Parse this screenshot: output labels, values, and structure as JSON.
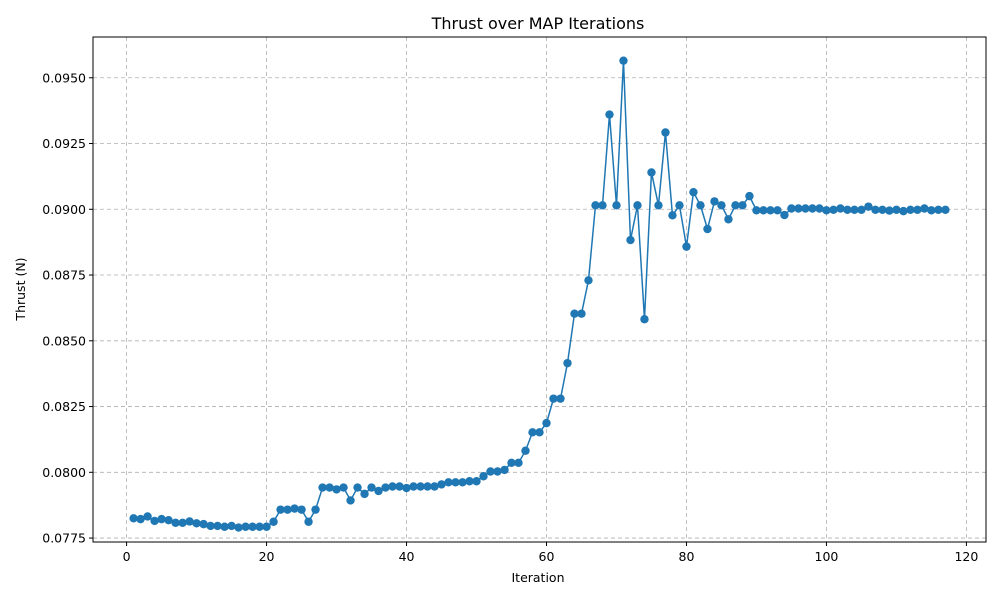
{
  "chart_data": {
    "type": "line",
    "title": "Thrust over MAP Iterations",
    "xlabel": "Iteration",
    "ylabel": "Thrust (N)",
    "xlim": [
      -4.8,
      122.8
    ],
    "ylim": [
      0.07735,
      0.09655
    ],
    "xticks": [
      0,
      20,
      40,
      60,
      80,
      100,
      120
    ],
    "yticks": [
      0.0775,
      0.08,
      0.0825,
      0.085,
      0.0875,
      0.09,
      0.0925,
      0.095
    ],
    "ytick_labels": [
      "0.0775",
      "0.0800",
      "0.0825",
      "0.0850",
      "0.0875",
      "0.0900",
      "0.0925",
      "0.0950"
    ],
    "grid": true,
    "series_color": "#1f77b4",
    "series": [
      {
        "x": [
          1,
          2,
          3,
          4,
          5,
          6,
          7,
          8,
          9,
          10,
          11,
          12,
          13,
          14,
          15,
          16,
          17,
          18,
          19,
          20,
          21,
          22,
          23,
          24,
          25,
          26,
          27,
          28,
          29,
          30,
          31,
          32,
          33,
          34,
          35,
          36,
          37,
          38,
          39,
          40,
          41,
          42,
          43,
          44,
          45,
          46,
          47,
          48,
          49,
          50,
          51,
          52,
          53,
          54,
          55,
          56,
          57,
          58,
          59,
          60,
          61,
          62,
          63,
          64,
          65,
          66,
          67,
          68,
          69,
          70,
          71,
          72,
          73,
          74,
          75,
          76,
          77,
          78,
          79,
          80,
          81,
          82,
          83,
          84,
          85,
          86,
          87,
          88,
          89,
          90,
          91,
          92,
          93,
          94,
          95,
          96,
          97,
          98,
          99,
          100,
          101,
          102,
          103,
          104,
          105,
          106,
          107,
          108,
          109,
          110,
          111,
          112,
          113,
          114,
          115,
          116,
          117
        ],
        "values": [
          0.07825,
          0.07822,
          0.07832,
          0.07815,
          0.07822,
          0.07818,
          0.07808,
          0.07808,
          0.07813,
          0.07806,
          0.07803,
          0.07796,
          0.07796,
          0.07793,
          0.07796,
          0.0779,
          0.07793,
          0.07793,
          0.07793,
          0.07793,
          0.07812,
          0.07858,
          0.07858,
          0.07862,
          0.07858,
          0.07812,
          0.07858,
          0.07942,
          0.07942,
          0.07935,
          0.07942,
          0.07893,
          0.07942,
          0.07918,
          0.07942,
          0.07929,
          0.07942,
          0.07946,
          0.07946,
          0.0794,
          0.07946,
          0.07946,
          0.07946,
          0.07946,
          0.07954,
          0.07962,
          0.07962,
          0.07962,
          0.07966,
          0.07966,
          0.07985,
          0.08003,
          0.08003,
          0.08009,
          0.08036,
          0.08036,
          0.08082,
          0.08152,
          0.08152,
          0.08187,
          0.0828,
          0.0828,
          0.08415,
          0.08603,
          0.08603,
          0.0873,
          0.09015,
          0.09015,
          0.0936,
          0.09015,
          0.09565,
          0.08883,
          0.09015,
          0.08582,
          0.0914,
          0.09015,
          0.09292,
          0.08977,
          0.09015,
          0.08858,
          0.09065,
          0.09015,
          0.08925,
          0.0903,
          0.09015,
          0.08962,
          0.09015,
          0.09015,
          0.0905,
          0.08996,
          0.08996,
          0.08996,
          0.08996,
          0.08978,
          0.09003,
          0.09003,
          0.09003,
          0.09003,
          0.09003,
          0.08996,
          0.08998,
          0.09003,
          0.08998,
          0.08998,
          0.08998,
          0.0901,
          0.08998,
          0.08998,
          0.08995,
          0.08998,
          0.08993,
          0.08998,
          0.08998,
          0.09003,
          0.08996,
          0.08998,
          0.08998
        ]
      }
    ]
  }
}
